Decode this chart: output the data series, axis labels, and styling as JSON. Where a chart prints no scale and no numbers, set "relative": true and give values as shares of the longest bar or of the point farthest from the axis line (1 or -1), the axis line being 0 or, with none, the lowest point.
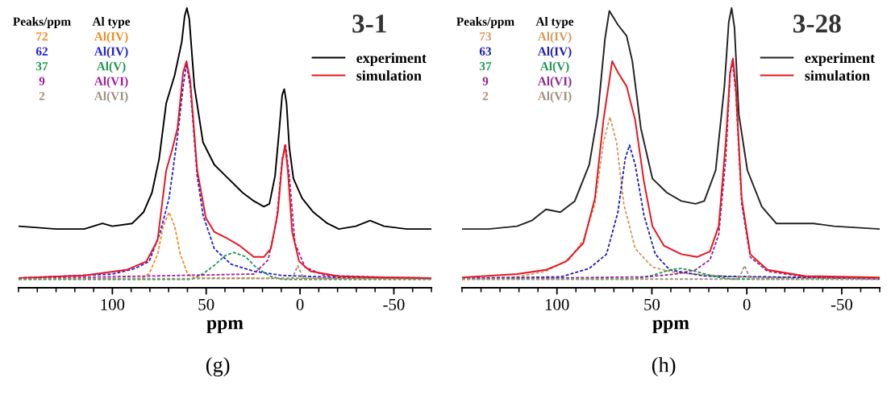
{
  "chart_data": [
    {
      "type": "line",
      "title": "3-1",
      "xlabel": "ppm",
      "relative": true,
      "legend": "top right",
      "xlim": [
        150,
        -70
      ],
      "xticks": [
        {
          "value": 150,
          "label": null
        },
        {
          "value": 140,
          "label": null
        },
        {
          "value": 130,
          "label": null
        },
        {
          "value": 120,
          "label": null
        },
        {
          "value": 110,
          "label": null
        },
        100,
        {
          "value": 90,
          "label": null
        },
        {
          "value": 80,
          "label": null
        },
        {
          "value": 70,
          "label": null
        },
        {
          "value": 60,
          "label": null
        },
        50,
        {
          "value": 40,
          "label": null
        },
        {
          "value": 30,
          "label": null
        },
        {
          "value": 20,
          "label": null
        },
        {
          "value": 10,
          "label": null
        },
        0,
        {
          "value": -10,
          "label": null
        },
        {
          "value": -20,
          "label": null
        },
        {
          "value": -30,
          "label": null
        },
        {
          "value": -40,
          "label": null
        },
        {
          "value": -50,
          "label": "-50"
        },
        {
          "value": -60,
          "label": null
        },
        {
          "value": -70,
          "label": null
        }
      ],
      "tick_labels": "x",
      "annotations": [
        "(g)",
        "Peaks/ppm",
        "Al type",
        "72",
        "Al(IV)",
        "62",
        "Al(IV)",
        "37",
        "Al(V)",
        "9",
        "Al(VI)",
        "2",
        "Al(VI)"
      ],
      "series": [
        {
          "name": "experiment",
          "color": "#000000",
          "line_style": "solid",
          "x": [
            150,
            130,
            115,
            105.3,
            100,
            89.4,
            83.4,
            78.9,
            75.1,
            71.3,
            66.8,
            63.0,
            61.5,
            60.3,
            59.0,
            56.3,
            51.7,
            45.7,
            39.7,
            30.6,
            24.6,
            19.3,
            16.3,
            13.3,
            11.0,
            9.5,
            8.4,
            7.2,
            5.7,
            3.5,
            -1.1,
            -7.1,
            -14.6,
            -20.7,
            -29.7,
            -37.3,
            -44.8,
            -56.9,
            -70
          ],
          "values": [
            0.22,
            0.21,
            0.21,
            0.23,
            0.22,
            0.23,
            0.27,
            0.34,
            0.46,
            0.66,
            0.76,
            0.88,
            0.97,
            1.0,
            0.96,
            0.72,
            0.52,
            0.44,
            0.4,
            0.34,
            0.31,
            0.29,
            0.3,
            0.4,
            0.57,
            0.69,
            0.71,
            0.66,
            0.5,
            0.39,
            0.32,
            0.27,
            0.23,
            0.21,
            0.22,
            0.24,
            0.22,
            0.21,
            0.21
          ]
        },
        {
          "name": "simulation",
          "color": "#e8141e",
          "line_style": "solid",
          "x": [
            150,
            115,
            92.5,
            81.9,
            75.9,
            71.3,
            68.3,
            65.3,
            62.3,
            60.5,
            58.5,
            54.8,
            50.2,
            45.7,
            39.7,
            32.1,
            24.6,
            19.3,
            15.5,
            11.8,
            9.5,
            8.0,
            6.5,
            4.2,
            0.5,
            -5.6,
            -20.7,
            -43.3,
            -70
          ],
          "values": [
            0.035,
            0.044,
            0.064,
            0.094,
            0.17,
            0.42,
            0.49,
            0.57,
            0.77,
            0.81,
            0.74,
            0.42,
            0.25,
            0.2,
            0.18,
            0.15,
            0.11,
            0.11,
            0.14,
            0.27,
            0.45,
            0.51,
            0.42,
            0.2,
            0.094,
            0.059,
            0.041,
            0.037,
            0.035
          ]
        },
        {
          "color": "#f08c1e",
          "line_style": "dashed",
          "x": [
            150,
            84.9,
            80.4,
            75.9,
            72.9,
            69.8,
            66.8,
            63.8,
            60.0,
            56.3,
            -70
          ],
          "values": [
            0.033,
            0.033,
            0.05,
            0.12,
            0.22,
            0.27,
            0.22,
            0.12,
            0.05,
            0.035,
            0.033
          ]
        },
        {
          "color": "#1e1edc",
          "line_style": "dashed",
          "x": [
            150,
            100,
            87.9,
            80.4,
            74.4,
            69.8,
            65.3,
            62.3,
            60.5,
            58.5,
            54.8,
            51.7,
            45.7,
            36.7,
            24.6,
            9.5,
            -20.7,
            -70
          ],
          "values": [
            0.035,
            0.049,
            0.069,
            0.094,
            0.2,
            0.32,
            0.54,
            0.72,
            0.8,
            0.72,
            0.4,
            0.26,
            0.14,
            0.084,
            0.059,
            0.044,
            0.037,
            0.035
          ]
        },
        {
          "color": "#1e9650",
          "line_style": "dashed",
          "x": [
            150,
            57.8,
            51.7,
            45.7,
            39.7,
            35.1,
            29.1,
            23.1,
            15.5,
            9.5,
            -70
          ],
          "values": [
            0.03,
            0.03,
            0.05,
            0.08,
            0.116,
            0.126,
            0.111,
            0.071,
            0.04,
            0.03,
            0.03
          ]
        },
        {
          "color": "#a01ea0",
          "line_style": "dashed",
          "x": [
            150,
            24.6,
            17.0,
            12.5,
            9.5,
            7.7,
            5.7,
            2.7,
            -2.6,
            -13.1,
            -70
          ],
          "values": [
            0.033,
            0.049,
            0.1,
            0.24,
            0.46,
            0.51,
            0.4,
            0.16,
            0.074,
            0.044,
            0.033
          ]
        },
        {
          "color": "#a09080",
          "line_style": "dashed",
          "x": [
            150,
            4.2,
            1.2,
            -1.8,
            -70
          ],
          "values": [
            0.033,
            0.033,
            0.079,
            0.033,
            0.033
          ]
        }
      ]
    },
    {
      "type": "line",
      "title": "3-28",
      "xlabel": "ppm",
      "relative": true,
      "legend": "top right",
      "xlim": [
        150,
        -70
      ],
      "xticks": [
        {
          "value": 150,
          "label": null
        },
        {
          "value": 140,
          "label": null
        },
        {
          "value": 130,
          "label": null
        },
        {
          "value": 120,
          "label": null
        },
        {
          "value": 110,
          "label": null
        },
        100,
        {
          "value": 90,
          "label": null
        },
        {
          "value": 80,
          "label": null
        },
        {
          "value": 70,
          "label": null
        },
        {
          "value": 60,
          "label": null
        },
        50,
        {
          "value": 40,
          "label": null
        },
        {
          "value": 30,
          "label": null
        },
        {
          "value": 20,
          "label": null
        },
        {
          "value": 10,
          "label": null
        },
        0,
        {
          "value": -10,
          "label": null
        },
        {
          "value": -20,
          "label": null
        },
        {
          "value": -30,
          "label": null
        },
        {
          "value": -40,
          "label": null
        },
        {
          "value": -50,
          "label": "-50"
        },
        {
          "value": -60,
          "label": null
        },
        {
          "value": -70,
          "label": null
        }
      ],
      "tick_labels": "x",
      "annotations": [
        "(h)",
        "Peaks/ppm",
        "Al type",
        "73",
        "Al(IV)",
        "63",
        "Al(IV)",
        "37",
        "Al(V)",
        "9",
        "Al(VI)",
        "2",
        "Al(VI)"
      ],
      "series": [
        {
          "name": "experiment",
          "color": "#222222",
          "line_style": "solid",
          "x": [
            150,
            136,
            121,
            113.3,
            105.8,
            98.2,
            90.6,
            83.0,
            78.5,
            74.7,
            72.4,
            67.9,
            63.3,
            60.3,
            55.8,
            49.7,
            42.1,
            34.5,
            27.0,
            22.4,
            16.4,
            11.8,
            9.5,
            8.0,
            6.5,
            4.2,
            -0.3,
            -7.9,
            -15.5,
            -23.0,
            -35.2,
            -45.8,
            -70
          ],
          "values": [
            0.21,
            0.21,
            0.22,
            0.24,
            0.28,
            0.27,
            0.31,
            0.44,
            0.62,
            0.89,
            0.99,
            0.94,
            0.9,
            0.81,
            0.57,
            0.39,
            0.34,
            0.31,
            0.3,
            0.31,
            0.42,
            0.72,
            0.95,
            1.0,
            0.93,
            0.62,
            0.42,
            0.29,
            0.23,
            0.23,
            0.23,
            0.22,
            0.21
          ]
        },
        {
          "name": "simulation",
          "color": "#e8141e",
          "line_style": "solid",
          "x": [
            150,
            121,
            105.8,
            95.2,
            86.1,
            80.0,
            75.5,
            70.9,
            67.9,
            63.3,
            58.8,
            54.2,
            49.7,
            43.6,
            34.5,
            26.2,
            19.4,
            14.8,
            11.1,
            8.8,
            7.3,
            5.8,
            2.7,
            -1.8,
            -10.9,
            -30.6,
            -70
          ],
          "values": [
            0.037,
            0.049,
            0.064,
            0.094,
            0.16,
            0.32,
            0.6,
            0.81,
            0.77,
            0.72,
            0.6,
            0.38,
            0.22,
            0.15,
            0.12,
            0.11,
            0.13,
            0.22,
            0.52,
            0.77,
            0.82,
            0.72,
            0.32,
            0.12,
            0.064,
            0.042,
            0.037
          ]
        },
        {
          "color": "#d39a5a",
          "line_style": "dashed",
          "x": [
            150,
            121,
            105.8,
            93.6,
            86.1,
            80.0,
            75.5,
            72.1,
            68.6,
            64.8,
            58.8,
            49.7,
            37.6,
            7.3,
            -70
          ],
          "values": [
            0.033,
            0.039,
            0.059,
            0.1,
            0.17,
            0.3,
            0.52,
            0.61,
            0.52,
            0.3,
            0.14,
            0.074,
            0.054,
            0.039,
            0.033
          ]
        },
        {
          "color": "#1e1eb4",
          "line_style": "dashed",
          "x": [
            150,
            98,
            83,
            73.9,
            67.9,
            64.1,
            61.8,
            58.8,
            54.2,
            48.2,
            40.6,
            22.4,
            -70
          ],
          "values": [
            0.033,
            0.039,
            0.069,
            0.12,
            0.27,
            0.46,
            0.51,
            0.44,
            0.26,
            0.12,
            0.064,
            0.042,
            0.033
          ]
        },
        {
          "color": "#1e9650",
          "line_style": "dashed",
          "x": [
            150,
            60.3,
            49.7,
            40.6,
            34.5,
            27.0,
            16.4,
            7.3,
            -70
          ],
          "values": [
            0.031,
            0.031,
            0.044,
            0.064,
            0.069,
            0.059,
            0.039,
            0.031,
            0.031
          ]
        },
        {
          "color": "#8c288c",
          "line_style": "dashed",
          "x": [
            150,
            52.7,
            37.6,
            27.0,
            19.4,
            14.8,
            11.1,
            8.8,
            7.6,
            5.8,
            2.7,
            -1.8,
            -10.9,
            -30.6,
            -70
          ],
          "values": [
            0.031,
            0.039,
            0.049,
            0.064,
            0.1,
            0.19,
            0.46,
            0.76,
            0.81,
            0.7,
            0.3,
            0.11,
            0.059,
            0.039,
            0.031
          ]
        },
        {
          "color": "#a09080",
          "line_style": "dashed",
          "x": [
            150,
            4.2,
            1.2,
            -1.8,
            -70
          ],
          "values": [
            0.031,
            0.031,
            0.079,
            0.031,
            0.031
          ]
        }
      ]
    }
  ]
}
